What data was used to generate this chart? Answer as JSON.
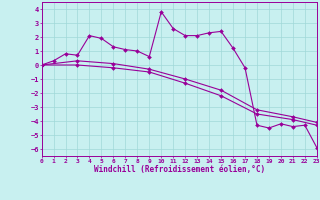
{
  "xlabel": "Windchill (Refroidissement éolien,°C)",
  "background_color": "#c8f0f0",
  "grid_color": "#a0d8d8",
  "line_color": "#990099",
  "xlim": [
    0,
    23
  ],
  "ylim": [
    -6.5,
    4.5
  ],
  "xticks": [
    0,
    1,
    2,
    3,
    4,
    5,
    6,
    7,
    8,
    9,
    10,
    11,
    12,
    13,
    14,
    15,
    16,
    17,
    18,
    19,
    20,
    21,
    22,
    23
  ],
  "yticks": [
    -6,
    -5,
    -4,
    -3,
    -2,
    -1,
    0,
    1,
    2,
    3,
    4
  ],
  "line1_x": [
    0,
    1,
    2,
    3,
    4,
    5,
    6,
    7,
    8,
    9,
    10,
    11,
    12,
    13,
    14,
    15,
    16,
    17,
    18,
    19,
    20,
    21,
    22,
    23
  ],
  "line1_y": [
    0.0,
    0.3,
    0.8,
    0.7,
    2.1,
    1.9,
    1.3,
    1.1,
    1.0,
    0.6,
    3.8,
    2.6,
    2.1,
    2.1,
    2.3,
    2.4,
    1.2,
    -0.2,
    -4.3,
    -4.5,
    -4.2,
    -4.4,
    -4.3,
    -5.9
  ],
  "line2_x": [
    0,
    3,
    6,
    9,
    12,
    15,
    18,
    21,
    23
  ],
  "line2_y": [
    0.0,
    0.0,
    -0.2,
    -0.5,
    -1.3,
    -2.2,
    -3.5,
    -3.9,
    -4.3
  ],
  "line3_x": [
    0,
    3,
    6,
    9,
    12,
    15,
    18,
    21,
    23
  ],
  "line3_y": [
    0.0,
    0.3,
    0.1,
    -0.3,
    -1.0,
    -1.8,
    -3.2,
    -3.7,
    -4.1
  ]
}
